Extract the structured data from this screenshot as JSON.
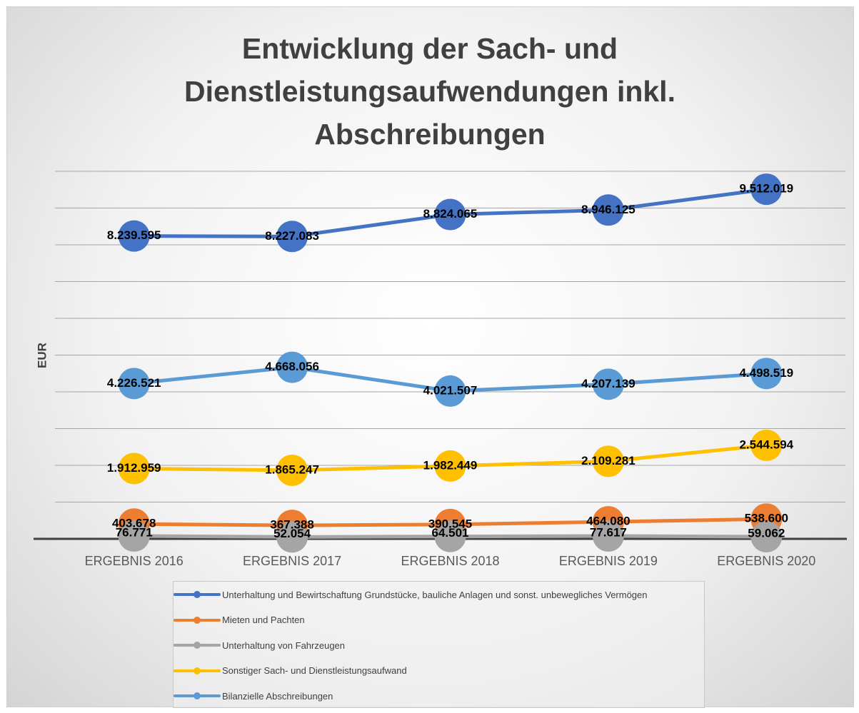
{
  "chart_data": {
    "type": "line",
    "title": "Entwicklung der Sach- und Dienstleistungsaufwendungen inkl. Abschreibungen",
    "y_label": "EUR",
    "categories": [
      "ERGEBNIS 2016",
      "ERGEBNIS 2017",
      "ERGEBNIS 2018",
      "ERGEBNIS 2019",
      "ERGEBNIS 2020"
    ],
    "ylim": [
      0,
      10000000
    ],
    "yticks": [
      0,
      1000000,
      2000000,
      3000000,
      4000000,
      5000000,
      6000000,
      7000000,
      8000000,
      9000000,
      10000000
    ],
    "grid": true,
    "legend": "bottom",
    "series": [
      {
        "name": "Unterhaltung und Bewirtschaftung Grundstücke, bauliche Anlagen und sonst. unbewegliches Vermögen",
        "color": "#4472c4",
        "values": [
          8239595,
          8227083,
          8824065,
          8946125,
          9512019
        ],
        "value_labels": [
          "8.239.595",
          "8.227.083",
          "8.824.065",
          "8.946.125",
          "9.512.019"
        ]
      },
      {
        "name": "Mieten und Pachten",
        "color": "#ed7d31",
        "values": [
          403678,
          367388,
          390545,
          464080,
          538600
        ],
        "value_labels": [
          "403.678",
          "367.388",
          "390.545",
          "464.080",
          "538.600"
        ]
      },
      {
        "name": "Unterhaltung von Fahrzeugen",
        "color": "#a5a5a5",
        "values": [
          76771,
          52054,
          64501,
          77617,
          59062
        ],
        "value_labels": [
          "76.771",
          "52.054",
          "64.501",
          "77.617",
          "59.062"
        ]
      },
      {
        "name": "Sonstiger Sach- und Dienstleistungsaufwand",
        "color": "#ffc000",
        "values": [
          1912959,
          1865247,
          1982449,
          2109281,
          2544594
        ],
        "value_labels": [
          "1.912.959",
          "1.865.247",
          "1.982.449",
          "2.109.281",
          "2.544.594"
        ]
      },
      {
        "name": "Bilanzielle Abschreibungen",
        "color": "#5b9bd5",
        "values": [
          4226521,
          4668056,
          4021507,
          4207139,
          4498519
        ],
        "value_labels": [
          "4.226.521",
          "4.668.056",
          "4.021.507",
          "4.207.139",
          "4.498.519"
        ]
      }
    ]
  }
}
